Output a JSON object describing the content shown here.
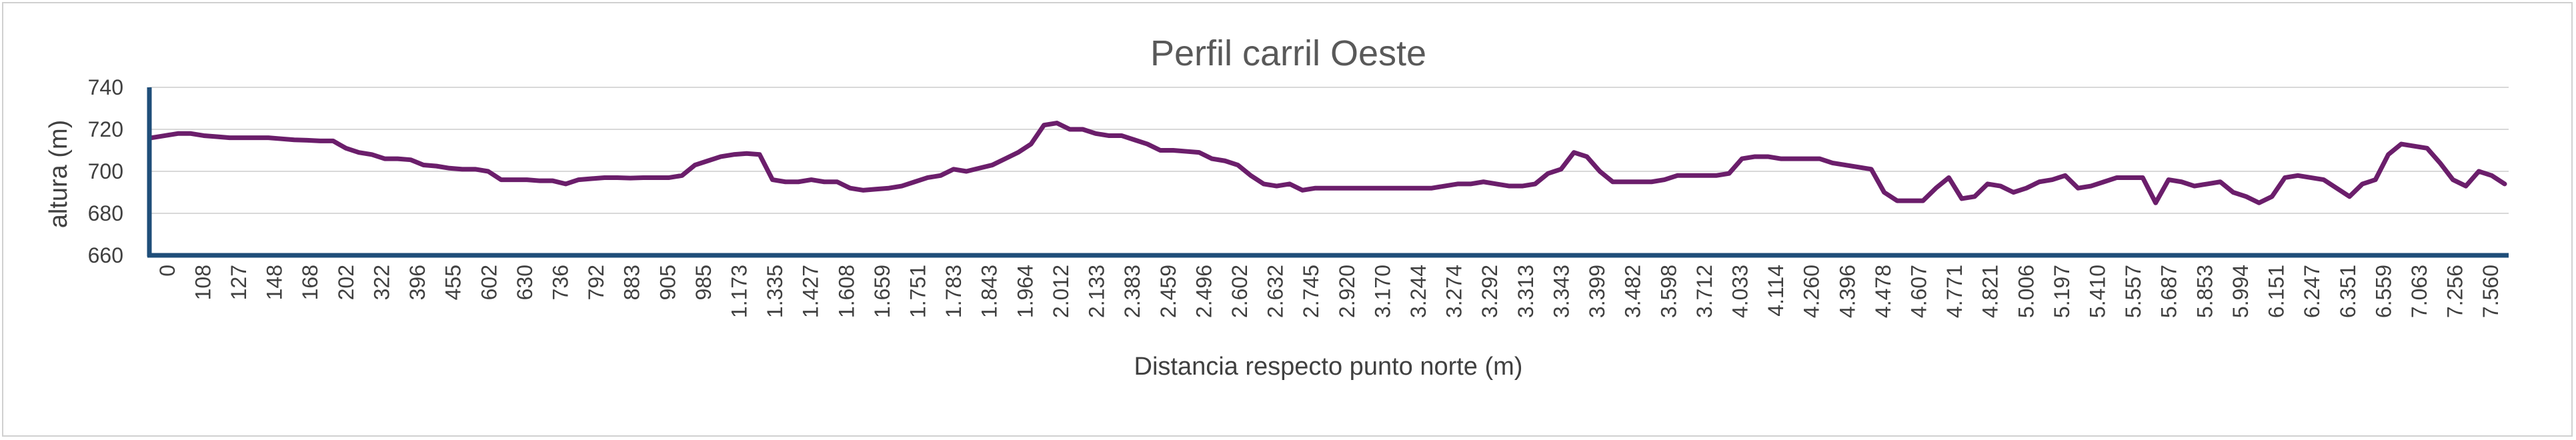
{
  "chart_data": {
    "type": "line",
    "title": "Perfil carril Oeste",
    "xlabel": "Distancia respecto punto norte (m)",
    "ylabel": "altura (m)",
    "ylim": [
      660,
      740
    ],
    "yticks": [
      "660",
      "680",
      "700",
      "720",
      "740"
    ],
    "grid": true,
    "line_color": "#6b1e6b",
    "axis_color": "#1f4e79",
    "x_tick_labels": [
      "0",
      "108",
      "127",
      "148",
      "168",
      "202",
      "322",
      "396",
      "455",
      "602",
      "630",
      "736",
      "792",
      "883",
      "905",
      "985",
      "1.173",
      "1.335",
      "1.427",
      "1.608",
      "1.659",
      "1.751",
      "1.783",
      "1.843",
      "1.964",
      "2.012",
      "2.133",
      "2.383",
      "2.459",
      "2.496",
      "2.602",
      "2.632",
      "2.745",
      "2.920",
      "3.170",
      "3.244",
      "3.274",
      "3.292",
      "3.313",
      "3.343",
      "3.399",
      "3.482",
      "3.598",
      "3.712",
      "4.033",
      "4.114",
      "4.260",
      "4.396",
      "4.478",
      "4.607",
      "4.771",
      "4.821",
      "5.006",
      "5.197",
      "5.410",
      "5.557",
      "5.687",
      "5.853",
      "5.994",
      "6.151",
      "6.247",
      "6.351",
      "6.559",
      "7.063",
      "7.256",
      "7.560"
    ],
    "series": [
      {
        "values": [
          716,
          717,
          718,
          718,
          717,
          716.5,
          716,
          716,
          716,
          716,
          715.5,
          715,
          714.8,
          714.5,
          714.5,
          711,
          709,
          708,
          706,
          706,
          705.5,
          703,
          702.5,
          701.5,
          701,
          701,
          700,
          696,
          696,
          696,
          695.5,
          695.5,
          694,
          696,
          696.5,
          697,
          697,
          696.8,
          697,
          697,
          697,
          698,
          703,
          705,
          707,
          708,
          708.5,
          708,
          696,
          695,
          695,
          696,
          695,
          695,
          692,
          691,
          691.5,
          692,
          693,
          695,
          697,
          698,
          701,
          700,
          701.5,
          703,
          706,
          709,
          713,
          722,
          723,
          720,
          720,
          718,
          717,
          717,
          715,
          713,
          710,
          710,
          709.5,
          709,
          706,
          705,
          703,
          698,
          694,
          693,
          694,
          691,
          692,
          692,
          692,
          692,
          692,
          692,
          692,
          692,
          692,
          692,
          693,
          694,
          694,
          695,
          694,
          693,
          693,
          694,
          699,
          701,
          709,
          707,
          700,
          695,
          695,
          695,
          695,
          696,
          698,
          698,
          698,
          698,
          699,
          706,
          707,
          707,
          706,
          706,
          706,
          706,
          704,
          703,
          702,
          701,
          690,
          686,
          686,
          686,
          692,
          697,
          687,
          688,
          694,
          693,
          690,
          692,
          695,
          696,
          698,
          692,
          693,
          695,
          697,
          697,
          697,
          685,
          696,
          695,
          693,
          694,
          695,
          690,
          688,
          685,
          688,
          697,
          698,
          697,
          696,
          692,
          688,
          694,
          696,
          708,
          713,
          712,
          711,
          704,
          696,
          693,
          700,
          698,
          694
        ]
      }
    ]
  }
}
